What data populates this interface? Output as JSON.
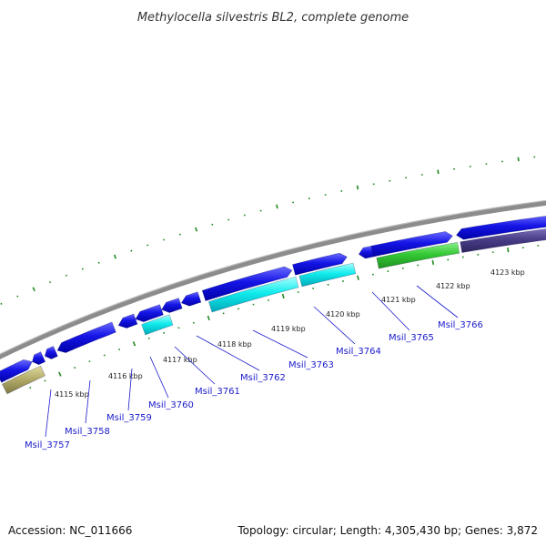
{
  "title": "Methylocella silvestris BL2, complete genome",
  "footer": {
    "accession": "Accession: NC_011666",
    "summary": "Topology: circular; Length: 4,305,430 bp; Genes: 3,872"
  },
  "colors": {
    "backbone": "#8c8c8c",
    "ticks": "#1f8a1f",
    "cds_forward": "#1010dd",
    "cds_reverse_a": "#00eeee",
    "cds_reverse_b": "#33cc33",
    "other_dark": "#4b3f8a",
    "other_olive": "#b5ad6a",
    "label": "#1a1acc"
  },
  "kbp_labels": [
    "4115 kbp",
    "4116 kbp",
    "4117 kbp",
    "4118 kbp",
    "4119 kbp",
    "4120 kbp",
    "4121 kbp",
    "4122 kbp",
    "4123 kbp"
  ],
  "gene_labels": [
    "Msil_3757",
    "Msil_3758",
    "Msil_3759",
    "Msil_3760",
    "Msil_3761",
    "Msil_3762",
    "Msil_3763",
    "Msil_3764",
    "Msil_3765",
    "Msil_3766"
  ]
}
